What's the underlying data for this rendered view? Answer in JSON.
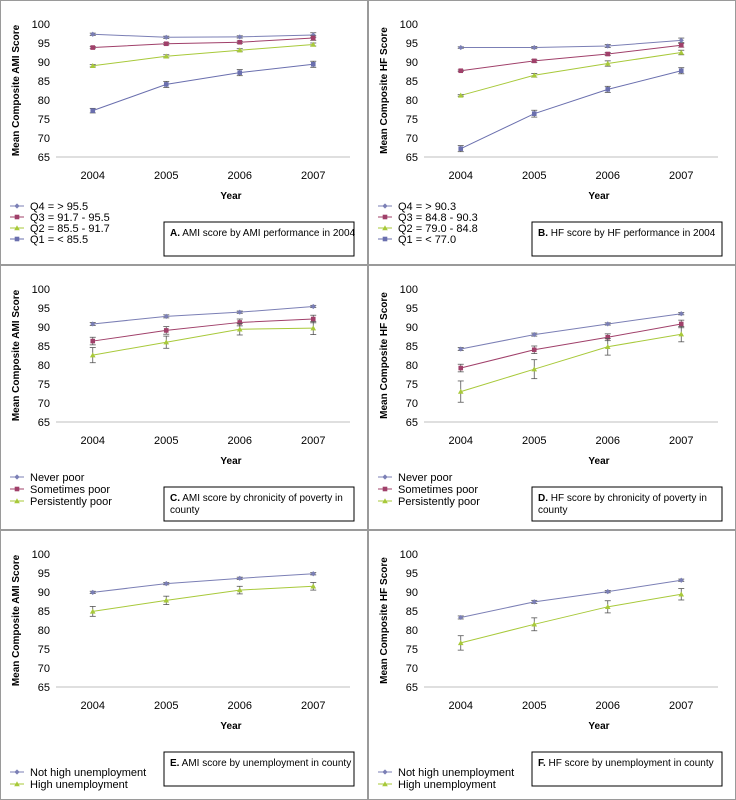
{
  "chart_data": [
    {
      "id": "A",
      "type": "line",
      "caption_letter": "A.",
      "caption_text": "AMI score by AMI performance in 2004",
      "ylabel": "Mean Composite AMI Score",
      "xlabel": "Year",
      "ylim": [
        65,
        100
      ],
      "yticks": [
        65,
        70,
        75,
        80,
        85,
        90,
        95,
        100
      ],
      "categories": [
        "2004",
        "2005",
        "2006",
        "2007"
      ],
      "series": [
        {
          "name": "Q4 = > 95.5",
          "color": "#7b7fb5",
          "marker": "diamond",
          "values": [
            97.3,
            96.5,
            96.6,
            97.1
          ],
          "errors": [
            0.3,
            0.3,
            0.3,
            0.6
          ]
        },
        {
          "name": "Q3 =    91.7 - 95.5",
          "color": "#a0406a",
          "marker": "square",
          "values": [
            93.8,
            94.8,
            95.2,
            96.3
          ],
          "errors": [
            0.3,
            0.3,
            0.3,
            0.6
          ]
        },
        {
          "name": "Q2 =    85.5 - 91.7",
          "color": "#a8c93a",
          "marker": "triangle",
          "values": [
            89.0,
            91.5,
            93.1,
            94.6
          ],
          "errors": [
            0.3,
            0.4,
            0.4,
            0.4
          ]
        },
        {
          "name": "Q1 = < 85.5",
          "color": "#6a6fae",
          "marker": "square",
          "values": [
            77.2,
            84.1,
            87.2,
            89.4
          ],
          "errors": [
            0.6,
            0.8,
            0.8,
            0.8
          ]
        }
      ]
    },
    {
      "id": "B",
      "type": "line",
      "caption_letter": "B.",
      "caption_text": "HF score by HF performance in 2004",
      "ylabel": "Mean Composite HF Score",
      "xlabel": "Year",
      "ylim": [
        65,
        100
      ],
      "yticks": [
        65,
        70,
        75,
        80,
        85,
        90,
        95,
        100
      ],
      "categories": [
        "2004",
        "2005",
        "2006",
        "2007"
      ],
      "series": [
        {
          "name": "Q4 = > 90.3",
          "color": "#7b7fb5",
          "marker": "diamond",
          "values": [
            93.8,
            93.8,
            94.2,
            95.7
          ],
          "errors": [
            0.2,
            0.3,
            0.4,
            0.6
          ]
        },
        {
          "name": "Q3 =    84.8 - 90.3",
          "color": "#a0406a",
          "marker": "square",
          "values": [
            87.7,
            90.3,
            92.1,
            94.4
          ],
          "errors": [
            0.2,
            0.4,
            0.4,
            0.5
          ]
        },
        {
          "name": "Q2 =    79.0 - 84.8",
          "color": "#a8c93a",
          "marker": "triangle",
          "values": [
            81.2,
            86.5,
            89.6,
            92.5
          ],
          "errors": [
            0.2,
            0.5,
            0.7,
            0.6
          ]
        },
        {
          "name": "Q1 = < 77.0",
          "color": "#6a6fae",
          "marker": "square",
          "values": [
            67.2,
            76.4,
            82.8,
            87.7
          ],
          "errors": [
            0.8,
            0.9,
            0.8,
            0.8
          ]
        }
      ]
    },
    {
      "id": "C",
      "type": "line",
      "caption_letter": "C.",
      "caption_text": "AMI score by chronicity of poverty in county",
      "ylabel": "Mean Composite AMI Score",
      "xlabel": "Year",
      "ylim": [
        65,
        100
      ],
      "yticks": [
        65,
        70,
        75,
        80,
        85,
        90,
        95,
        100
      ],
      "categories": [
        "2004",
        "2005",
        "2006",
        "2007"
      ],
      "series": [
        {
          "name": "Never poor",
          "color": "#7b7fb5",
          "marker": "diamond",
          "values": [
            90.8,
            92.8,
            93.9,
            95.4
          ],
          "errors": [
            0.4,
            0.4,
            0.3,
            0.3
          ]
        },
        {
          "name": "Sometimes poor",
          "color": "#a0406a",
          "marker": "square",
          "values": [
            86.3,
            89.1,
            91.2,
            92.1
          ],
          "errors": [
            1.0,
            1.0,
            0.9,
            1.0
          ]
        },
        {
          "name": "Persistently poor",
          "color": "#a8c93a",
          "marker": "triangle",
          "values": [
            82.6,
            86.0,
            89.4,
            89.7
          ],
          "errors": [
            2.0,
            1.6,
            1.5,
            1.7
          ]
        }
      ]
    },
    {
      "id": "D",
      "type": "line",
      "caption_letter": "D.",
      "caption_text": "HF score by chronicity of poverty in county",
      "ylabel": "Mean Composite HF Score",
      "xlabel": "Year",
      "ylim": [
        65,
        100
      ],
      "yticks": [
        65,
        70,
        75,
        80,
        85,
        90,
        95,
        100
      ],
      "categories": [
        "2004",
        "2005",
        "2006",
        "2007"
      ],
      "series": [
        {
          "name": "Never poor",
          "color": "#7b7fb5",
          "marker": "diamond",
          "values": [
            84.2,
            88.0,
            90.8,
            93.5
          ],
          "errors": [
            0.4,
            0.4,
            0.3,
            0.3
          ]
        },
        {
          "name": "Sometimes poor",
          "color": "#a0406a",
          "marker": "square",
          "values": [
            79.2,
            84.0,
            87.3,
            90.8
          ],
          "errors": [
            1.0,
            1.0,
            0.9,
            1.0
          ]
        },
        {
          "name": "Persistently poor",
          "color": "#a8c93a",
          "marker": "triangle",
          "values": [
            73.0,
            78.9,
            84.8,
            88.1
          ],
          "errors": [
            2.8,
            2.5,
            2.2,
            2.0
          ]
        }
      ]
    },
    {
      "id": "E",
      "type": "line",
      "caption_letter": "E.",
      "caption_text": "AMI score by unemployment in county",
      "ylabel": "Mean Composite AMI Score",
      "xlabel": "Year",
      "ylim": [
        65,
        100
      ],
      "yticks": [
        65,
        70,
        75,
        80,
        85,
        90,
        95,
        100
      ],
      "categories": [
        "2004",
        "2005",
        "2006",
        "2007"
      ],
      "series": [
        {
          "name": "Not high unemployment",
          "color": "#7b7fb5",
          "marker": "diamond",
          "values": [
            89.9,
            92.2,
            93.6,
            94.8
          ],
          "errors": [
            0.3,
            0.3,
            0.3,
            0.3
          ]
        },
        {
          "name": "High unemployment",
          "color": "#a8c93a",
          "marker": "triangle",
          "values": [
            84.9,
            87.8,
            90.5,
            91.5
          ],
          "errors": [
            1.3,
            1.1,
            1.0,
            1.0
          ]
        }
      ]
    },
    {
      "id": "F",
      "type": "line",
      "caption_letter": "F.",
      "caption_text": "HF score by unemployment in county",
      "ylabel": "Mean Composite HF Score",
      "xlabel": "Year",
      "ylim": [
        65,
        100
      ],
      "yticks": [
        65,
        70,
        75,
        80,
        85,
        90,
        95,
        100
      ],
      "categories": [
        "2004",
        "2005",
        "2006",
        "2007"
      ],
      "series": [
        {
          "name": "Not high unemployment",
          "color": "#7b7fb5",
          "marker": "diamond",
          "values": [
            83.3,
            87.4,
            90.1,
            93.1
          ],
          "errors": [
            0.4,
            0.4,
            0.3,
            0.3
          ]
        },
        {
          "name": "High unemployment",
          "color": "#a8c93a",
          "marker": "triangle",
          "values": [
            76.6,
            81.5,
            86.1,
            89.4
          ],
          "errors": [
            1.9,
            1.7,
            1.6,
            1.5
          ]
        }
      ]
    }
  ]
}
